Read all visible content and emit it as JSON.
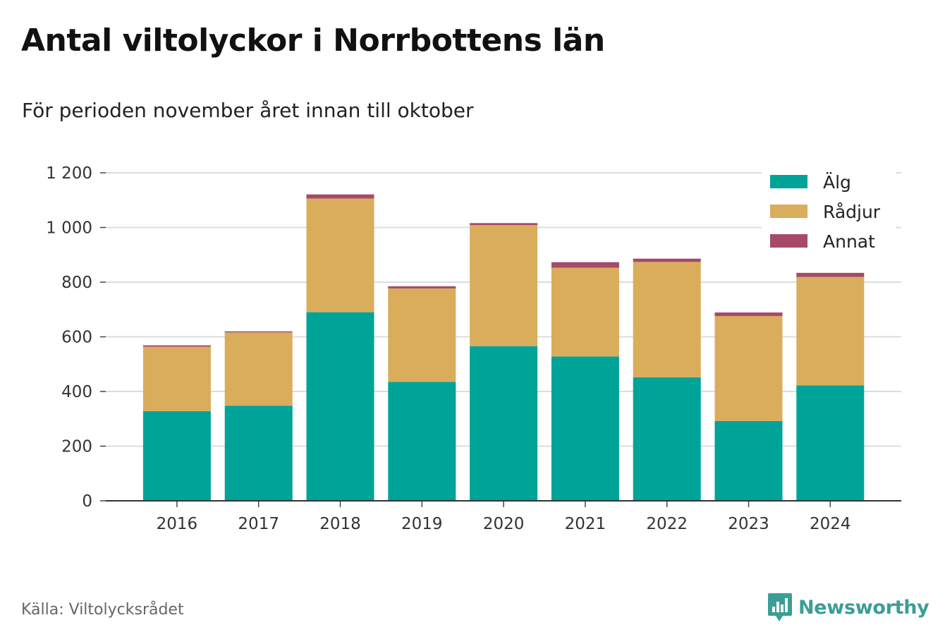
{
  "title": "Antal viltolyckor i Norrbottens län",
  "subtitle": "För perioden november året innan till oktober",
  "source": "Källa: Viltolycksrådet",
  "brand": {
    "name": "Newsworthy",
    "icon": "newsworthy-logo-icon",
    "color": "#3a9e96"
  },
  "chart_data": {
    "type": "bar",
    "stacked": true,
    "categories": [
      "2016",
      "2017",
      "2018",
      "2019",
      "2020",
      "2021",
      "2022",
      "2023",
      "2024"
    ],
    "series": [
      {
        "name": "Älg",
        "color": "#00a398",
        "values": [
          328,
          348,
          690,
          435,
          566,
          528,
          452,
          292,
          422
        ]
      },
      {
        "name": "Rådjur",
        "color": "#d9ad5b",
        "values": [
          236,
          268,
          416,
          342,
          443,
          325,
          422,
          384,
          397
        ]
      },
      {
        "name": "Annat",
        "color": "#a6496b",
        "values": [
          5,
          4,
          15,
          8,
          7,
          20,
          12,
          13,
          15
        ]
      }
    ],
    "ylim": [
      0,
      1200
    ],
    "yticks": [
      0,
      200,
      400,
      600,
      800,
      1000,
      1200
    ],
    "ytick_labels": [
      "0",
      "200",
      "400",
      "600",
      "800",
      "1 000",
      "1 200"
    ],
    "xlabel": "",
    "ylabel": "",
    "grid": true,
    "legend_position": "top-right"
  }
}
